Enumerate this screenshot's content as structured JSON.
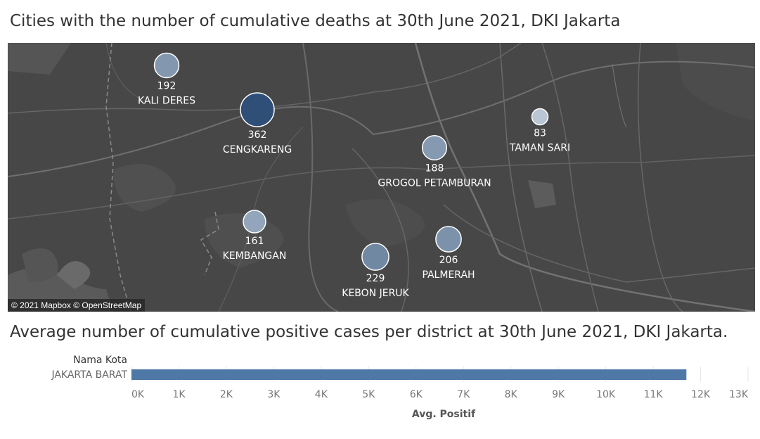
{
  "map_title": "Cities with the number of cumulative deaths at 30th June 2021, DKI Jakarta",
  "bar_title": "Average number of cumulative positive cases per district at 30th June 2021, DKI Jakarta.",
  "attribution": "© 2021 Mapbox © OpenStreetMap",
  "colors": {
    "map_bg": "#474747",
    "bubble_dark": "#2f4f78",
    "bubble_light": "#b9c6d3",
    "bar": "#4e79a7"
  },
  "chart_data": [
    {
      "type": "scatter",
      "title": "Cities with the number of cumulative deaths at 30th June 2021, DKI Jakarta",
      "points": [
        {
          "district": "KALI DERES",
          "deaths": 192
        },
        {
          "district": "CENGKARENG",
          "deaths": 362
        },
        {
          "district": "TAMAN SARI",
          "deaths": 83
        },
        {
          "district": "GROGOL PETAMBURAN",
          "deaths": 188
        },
        {
          "district": "KEMBANGAN",
          "deaths": 161
        },
        {
          "district": "KEBON JERUK",
          "deaths": 229
        },
        {
          "district": "PALMERAH",
          "deaths": 206
        }
      ]
    },
    {
      "type": "bar",
      "title": "Average number of cumulative positive cases per district at 30th June 2021, DKI Jakarta.",
      "row_header": "Nama Kota",
      "categories": [
        "JAKARTA BARAT"
      ],
      "values": [
        11700
      ],
      "xlabel": "Avg. Positif",
      "xlim": [
        0,
        13000
      ],
      "ticks": [
        "0K",
        "1K",
        "2K",
        "3K",
        "4K",
        "5K",
        "6K",
        "7K",
        "8K",
        "9K",
        "10K",
        "11K",
        "12K",
        "13K"
      ]
    }
  ]
}
